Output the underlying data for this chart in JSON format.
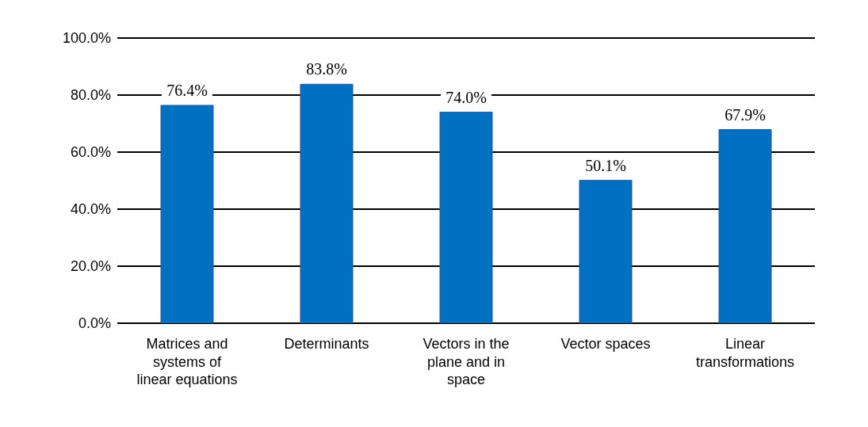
{
  "chart_data": {
    "type": "bar",
    "categories": [
      "Matrices and systems of linear equations",
      "Determinants",
      "Vectors in the plane and in space",
      "Vector spaces",
      "Linear transformations"
    ],
    "values": [
      76.4,
      83.8,
      74.0,
      50.1,
      67.9
    ],
    "value_labels": [
      "76.4%",
      "83.8%",
      "74.0%",
      "50.1%",
      "67.9%"
    ],
    "color": "#0070c0",
    "ylim": [
      0,
      100
    ],
    "yticks": [
      {
        "value": 0,
        "label": "0.0%"
      },
      {
        "value": 20,
        "label": "20.0%"
      },
      {
        "value": 40,
        "label": "40.0%"
      },
      {
        "value": 60,
        "label": "60.0%"
      },
      {
        "value": 80,
        "label": "80.0%"
      },
      {
        "value": 100,
        "label": "100.0%"
      }
    ],
    "grid": "y"
  }
}
